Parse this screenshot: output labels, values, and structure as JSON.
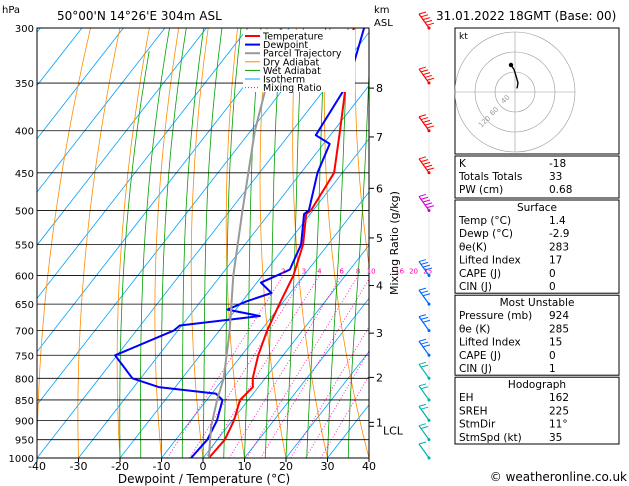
{
  "header": {
    "hpa_unit": "hPa",
    "location": "50°00'N  14°26'E  304m  ASL",
    "km_unit": "km",
    "asl_unit": "ASL",
    "datetime": "31.01.2022  18GMT  (Base: 00)"
  },
  "footer": {
    "copyright": "© weatheronline.co.uk"
  },
  "colors": {
    "temperature": "#ff0000",
    "dewpoint": "#0000ff",
    "parcel": "#999999",
    "dry_adiabat": "#ff8c00",
    "wet_adiabat": "#00a000",
    "isotherm": "#00a0ff",
    "mixing_ratio": "#ff00aa",
    "wind": "#00b0b0"
  },
  "chart_data": {
    "type": "line",
    "title": "",
    "xlabel": "Dewpoint / Temperature (°C)",
    "ylabel": "hPa",
    "xlim": [
      -40,
      40
    ],
    "ylim": [
      1000,
      300
    ],
    "x_ticks": [
      "-40",
      "-30",
      "-20",
      "-10",
      "0",
      "10",
      "20",
      "30",
      "40"
    ],
    "y_ticks": [
      "300",
      "350",
      "400",
      "450",
      "500",
      "550",
      "600",
      "650",
      "700",
      "750",
      "800",
      "850",
      "900",
      "950",
      "1000"
    ],
    "km_ticks": [
      {
        "label": "8",
        "p": 355
      },
      {
        "label": "7",
        "p": 407
      },
      {
        "label": "6",
        "p": 470
      },
      {
        "label": "5",
        "p": 540
      },
      {
        "label": "4",
        "p": 617
      },
      {
        "label": "3",
        "p": 705
      },
      {
        "label": "2",
        "p": 798
      },
      {
        "label": "1",
        "p": 905
      }
    ],
    "lcl_label": "LCL",
    "lcl_p": 915,
    "mixing_ratio_axis_label": "Mixing Ratio (g/kg)",
    "mixing_ratio_values": [
      "2",
      "3",
      "4",
      "6",
      "8",
      "10",
      "16",
      "20",
      "25"
    ],
    "legend": [
      "Temperature",
      "Dewpoint",
      "Parcel Trajectory",
      "Dry Adiabat",
      "Wet Adiabat",
      "Isotherm",
      "Mixing Ratio"
    ],
    "legend_position": "top-right",
    "series": [
      {
        "name": "Temperature",
        "points": [
          {
            "p": 1000,
            "t": 1.4
          },
          {
            "p": 950,
            "t": 1.8
          },
          {
            "p": 900,
            "t": 0.4
          },
          {
            "p": 850,
            "t": -2.0
          },
          {
            "p": 820,
            "t": -1.3
          },
          {
            "p": 800,
            "t": -3.0
          },
          {
            "p": 750,
            "t": -6.0
          },
          {
            "p": 700,
            "t": -8.5
          },
          {
            "p": 650,
            "t": -10.5
          },
          {
            "p": 600,
            "t": -12.5
          },
          {
            "p": 550,
            "t": -16.0
          },
          {
            "p": 505,
            "t": -21.0
          },
          {
            "p": 500,
            "t": -20.5
          },
          {
            "p": 450,
            "t": -22.0
          },
          {
            "p": 400,
            "t": -28.5
          },
          {
            "p": 350,
            "t": -36.0
          },
          {
            "p": 300,
            "t": -44.5
          }
        ]
      },
      {
        "name": "Dewpoint",
        "points": [
          {
            "p": 1000,
            "t": -2.9
          },
          {
            "p": 950,
            "t": -2.4
          },
          {
            "p": 900,
            "t": -3.7
          },
          {
            "p": 850,
            "t": -6.2
          },
          {
            "p": 835,
            "t": -9.0
          },
          {
            "p": 820,
            "t": -24.0
          },
          {
            "p": 800,
            "t": -32.0
          },
          {
            "p": 750,
            "t": -40.5
          },
          {
            "p": 700,
            "t": -31.0
          },
          {
            "p": 690,
            "t": -30.5
          },
          {
            "p": 672,
            "t": -13.0
          },
          {
            "p": 660,
            "t": -22.0
          },
          {
            "p": 645,
            "t": -19.0
          },
          {
            "p": 630,
            "t": -14.5
          },
          {
            "p": 612,
            "t": -19.0
          },
          {
            "p": 600,
            "t": -16.5
          },
          {
            "p": 590,
            "t": -14.5
          },
          {
            "p": 550,
            "t": -16.5
          },
          {
            "p": 505,
            "t": -21.5
          },
          {
            "p": 500,
            "t": -21.0
          },
          {
            "p": 450,
            "t": -26.0
          },
          {
            "p": 415,
            "t": -28.5
          },
          {
            "p": 405,
            "t": -33.5
          },
          {
            "p": 350,
            "t": -35.5
          },
          {
            "p": 300,
            "t": -42.0
          }
        ]
      },
      {
        "name": "Parcel Trajectory",
        "points": [
          {
            "p": 1000,
            "t": 1.4
          },
          {
            "p": 915,
            "t": -4.0
          },
          {
            "p": 850,
            "t": -7.5
          },
          {
            "p": 800,
            "t": -10.0
          },
          {
            "p": 700,
            "t": -17.5
          },
          {
            "p": 600,
            "t": -27.0
          },
          {
            "p": 500,
            "t": -37.0
          },
          {
            "p": 400,
            "t": -49.0
          },
          {
            "p": 300,
            "t": -62.0
          }
        ]
      }
    ],
    "wind_barbs": [
      {
        "p": 300,
        "speed": 80
      },
      {
        "p": 350,
        "speed": 75
      },
      {
        "p": 400,
        "speed": 70
      },
      {
        "p": 450,
        "speed": 55
      },
      {
        "p": 500,
        "speed": 50
      },
      {
        "p": 600,
        "speed": 35
      },
      {
        "p": 650,
        "speed": 30
      },
      {
        "p": 700,
        "speed": 30
      },
      {
        "p": 750,
        "speed": 25
      },
      {
        "p": 800,
        "speed": 20
      },
      {
        "p": 850,
        "speed": 20
      },
      {
        "p": 900,
        "speed": 15
      },
      {
        "p": 950,
        "speed": 15
      },
      {
        "p": 1000,
        "speed": 10
      }
    ]
  },
  "hodograph": {
    "unit_label": "kt",
    "ring_labels": [
      "40",
      "60",
      "120"
    ],
    "points": [
      {
        "u": 2,
        "v": -4
      },
      {
        "u": 3,
        "v": -10
      },
      {
        "u": 1,
        "v": -18
      },
      {
        "u": -1,
        "v": -25
      },
      {
        "u": -4,
        "v": -30
      }
    ]
  },
  "indices": {
    "top": [
      {
        "label": "K",
        "value": "-18"
      },
      {
        "label": "Totals Totals",
        "value": "33"
      },
      {
        "label": "PW (cm)",
        "value": "0.68"
      }
    ],
    "surface": {
      "title": "Surface",
      "rows": [
        {
          "label": "Temp (°C)",
          "value": "1.4"
        },
        {
          "label": "Dewp (°C)",
          "value": "-2.9"
        },
        {
          "label": "θe(K)",
          "value": "283"
        },
        {
          "label": "Lifted Index",
          "value": "17"
        },
        {
          "label": "CAPE (J)",
          "value": "0"
        },
        {
          "label": "CIN (J)",
          "value": "0"
        }
      ]
    },
    "most_unstable": {
      "title": "Most Unstable",
      "rows": [
        {
          "label": "Pressure (mb)",
          "value": "924"
        },
        {
          "label": "θe (K)",
          "value": "285"
        },
        {
          "label": "Lifted Index",
          "value": "15"
        },
        {
          "label": "CAPE (J)",
          "value": "0"
        },
        {
          "label": "CIN (J)",
          "value": "1"
        }
      ]
    },
    "hodograph": {
      "title": "Hodograph",
      "rows": [
        {
          "label": "EH",
          "value": "162"
        },
        {
          "label": "SREH",
          "value": "225"
        },
        {
          "label": "StmDir",
          "value": "11°"
        },
        {
          "label": "StmSpd (kt)",
          "value": "35"
        }
      ]
    }
  }
}
